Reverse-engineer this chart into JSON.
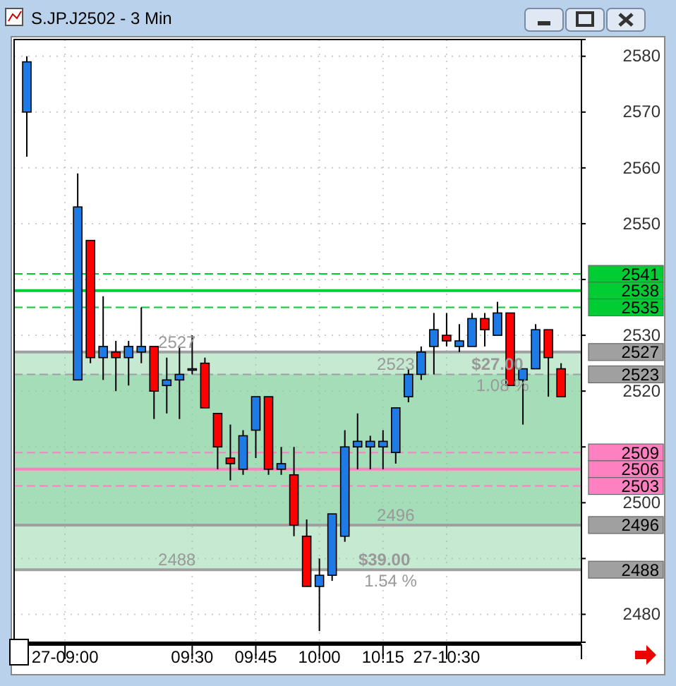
{
  "chart_data": {
    "type": "candlestick",
    "title": "S.JP.J2502 - 3 Min",
    "x": [
      8.85,
      9.05,
      9.1,
      9.15,
      9.2,
      9.25,
      9.3,
      9.35,
      9.4,
      9.45,
      9.5,
      9.55,
      9.6,
      9.65,
      9.7,
      9.75,
      9.8,
      9.85,
      9.9,
      9.95,
      10,
      10.05,
      10.1,
      10.15,
      10.2,
      10.25,
      10.3,
      10.35,
      10.4,
      10.45,
      10.5,
      10.55,
      10.6,
      10.65,
      10.7,
      10.75,
      10.8,
      10.85,
      10.9,
      10.95
    ],
    "ohlc": [
      [
        2570,
        2580,
        2562,
        2579
      ],
      [
        2522,
        2559,
        2522,
        2553
      ],
      [
        2547,
        2547,
        2525,
        2526
      ],
      [
        2526,
        2537,
        2522,
        2528
      ],
      [
        2527,
        2529,
        2520,
        2526
      ],
      [
        2526,
        2529,
        2521,
        2528
      ],
      [
        2527,
        2535,
        2525,
        2528
      ],
      [
        2528,
        2528,
        2515,
        2520
      ],
      [
        2521,
        2526,
        2516,
        2522
      ],
      [
        2522,
        2528,
        2515,
        2523
      ],
      [
        2524,
        2530,
        2523,
        2524
      ],
      [
        2525,
        2526,
        2517,
        2517
      ],
      [
        2516,
        2516,
        2506,
        2510
      ],
      [
        2508,
        2514,
        2504,
        2507
      ],
      [
        2506,
        2513,
        2505,
        2512
      ],
      [
        2513,
        2519,
        2508,
        2519
      ],
      [
        2519,
        2519,
        2505,
        2506
      ],
      [
        2506,
        2510,
        2505,
        2507
      ],
      [
        2505,
        2510,
        2494,
        2496
      ],
      [
        2494,
        2497,
        2485,
        2485
      ],
      [
        2485,
        2490,
        2477,
        2487
      ],
      [
        2487,
        2498,
        2486,
        2498
      ],
      [
        2494,
        2513,
        2493,
        2510
      ],
      [
        2510,
        2516,
        2506,
        2511
      ],
      [
        2510,
        2512,
        2506,
        2511
      ],
      [
        2510,
        2513,
        2506,
        2511
      ],
      [
        2509,
        2517,
        2507,
        2517
      ],
      [
        2519,
        2524,
        2518,
        2523
      ],
      [
        2523,
        2528,
        2522,
        2527
      ],
      [
        2528,
        2534,
        2523,
        2531
      ],
      [
        2530,
        2534,
        2528,
        2529
      ],
      [
        2528,
        2532,
        2527,
        2529
      ],
      [
        2528,
        2534,
        2528,
        2533
      ],
      [
        2533,
        2534,
        2528,
        2531
      ],
      [
        2530,
        2536,
        2530,
        2534
      ],
      [
        2534,
        2534,
        2521,
        2521
      ],
      [
        2522,
        2524,
        2514,
        2524
      ],
      [
        2524,
        2532,
        2524,
        2531
      ],
      [
        2531,
        2531,
        2519,
        2526
      ],
      [
        2524,
        2525,
        2519,
        2519
      ]
    ],
    "colors": [
      "#1e7be6",
      "#1e7be6",
      "#ff0000",
      "#1e7be6",
      "#ff0000",
      "#1e7be6",
      "#1e7be6",
      "#ff0000",
      "#1e7be6",
      "#1e7be6",
      "#1e7be6",
      "#ff0000",
      "#ff0000",
      "#ff0000",
      "#1e7be6",
      "#1e7be6",
      "#ff0000",
      "#1e7be6",
      "#ff0000",
      "#ff0000",
      "#1e7be6",
      "#1e7be6",
      "#1e7be6",
      "#1e7be6",
      "#1e7be6",
      "#1e7be6",
      "#1e7be6",
      "#1e7be6",
      "#1e7be6",
      "#1e7be6",
      "#ff0000",
      "#1e7be6",
      "#1e7be6",
      "#ff0000",
      "#1e7be6",
      "#ff0000",
      "#1e7be6",
      "#1e7be6",
      "#ff0000",
      "#ff0000"
    ],
    "xlim": [
      8.8,
      11.03
    ],
    "xticks": [
      {
        "value": 9,
        "label": "27-09:00"
      },
      {
        "value": 9.5,
        "label": "09:30"
      },
      {
        "value": 9.75,
        "label": "09:45"
      },
      {
        "value": 10,
        "label": "10:00"
      },
      {
        "value": 10.25,
        "label": "10:15"
      },
      {
        "value": 10.5,
        "label": "27-10:30"
      }
    ],
    "ylim": [
      2475,
      2583
    ],
    "yticks": [
      2480,
      {
        "value": 2490,
        "label": null
      },
      2500,
      {
        "value": 2510,
        "label": null
      },
      2520,
      2530,
      {
        "value": 2540,
        "label": null
      },
      2550,
      2560,
      2570,
      2580
    ],
    "grid": true,
    "bands": [
      {
        "axis": "y",
        "from": 2488,
        "to": 2527,
        "color": "#7fcf9a"
      },
      {
        "axis": "y",
        "from": 2496,
        "to": 2523,
        "color": "#7fcf9a"
      }
    ],
    "ref_lines": [
      {
        "axis": "y",
        "value": 2541,
        "label": "2541",
        "color": "#00cc33",
        "line_style": "dashed"
      },
      {
        "axis": "y",
        "value": 2538,
        "label": "2538",
        "color": "#00cc33",
        "line_style": "solid"
      },
      {
        "axis": "y",
        "value": 2535,
        "label": "2535",
        "color": "#00cc33",
        "line_style": "dashed"
      },
      {
        "axis": "y",
        "value": 2527,
        "label": "2527",
        "color": "#a0a0a0",
        "line_style": "solid"
      },
      {
        "axis": "y",
        "value": 2523,
        "label": "2523",
        "color": "#a0a0a0",
        "line_style": "dashed"
      },
      {
        "axis": "y",
        "value": 2509,
        "label": "2509",
        "color": "#ff80c0",
        "line_style": "dashed"
      },
      {
        "axis": "y",
        "value": 2506,
        "label": "2506",
        "color": "#ff80c0",
        "line_style": "solid"
      },
      {
        "axis": "y",
        "value": 2503,
        "label": "2503",
        "color": "#ff80c0",
        "line_style": "dashed"
      },
      {
        "axis": "y",
        "value": 2496,
        "label": "2496",
        "color": "#a0a0a0",
        "line_style": "solid"
      },
      {
        "axis": "y",
        "value": 2488,
        "label": "2488",
        "color": "#a0a0a0",
        "line_style": "solid"
      }
    ],
    "annotations": [
      {
        "text": "2527",
        "x": 9.44,
        "y": 2527
      },
      {
        "text": "2488",
        "x": 9.44,
        "y": 2488
      },
      {
        "text": "$39.00",
        "x": 10.255,
        "y": 2488
      },
      {
        "text": "1.54 %",
        "x": 10.28,
        "y": 2488
      },
      {
        "text": "2523",
        "x": 10.3,
        "y": 2523
      },
      {
        "text": "2496",
        "x": 10.3,
        "y": 2496
      },
      {
        "text": "$27.00",
        "x": 10.7,
        "y": 2523
      },
      {
        "text": "1.08 %",
        "x": 10.72,
        "y": 2523
      }
    ]
  }
}
